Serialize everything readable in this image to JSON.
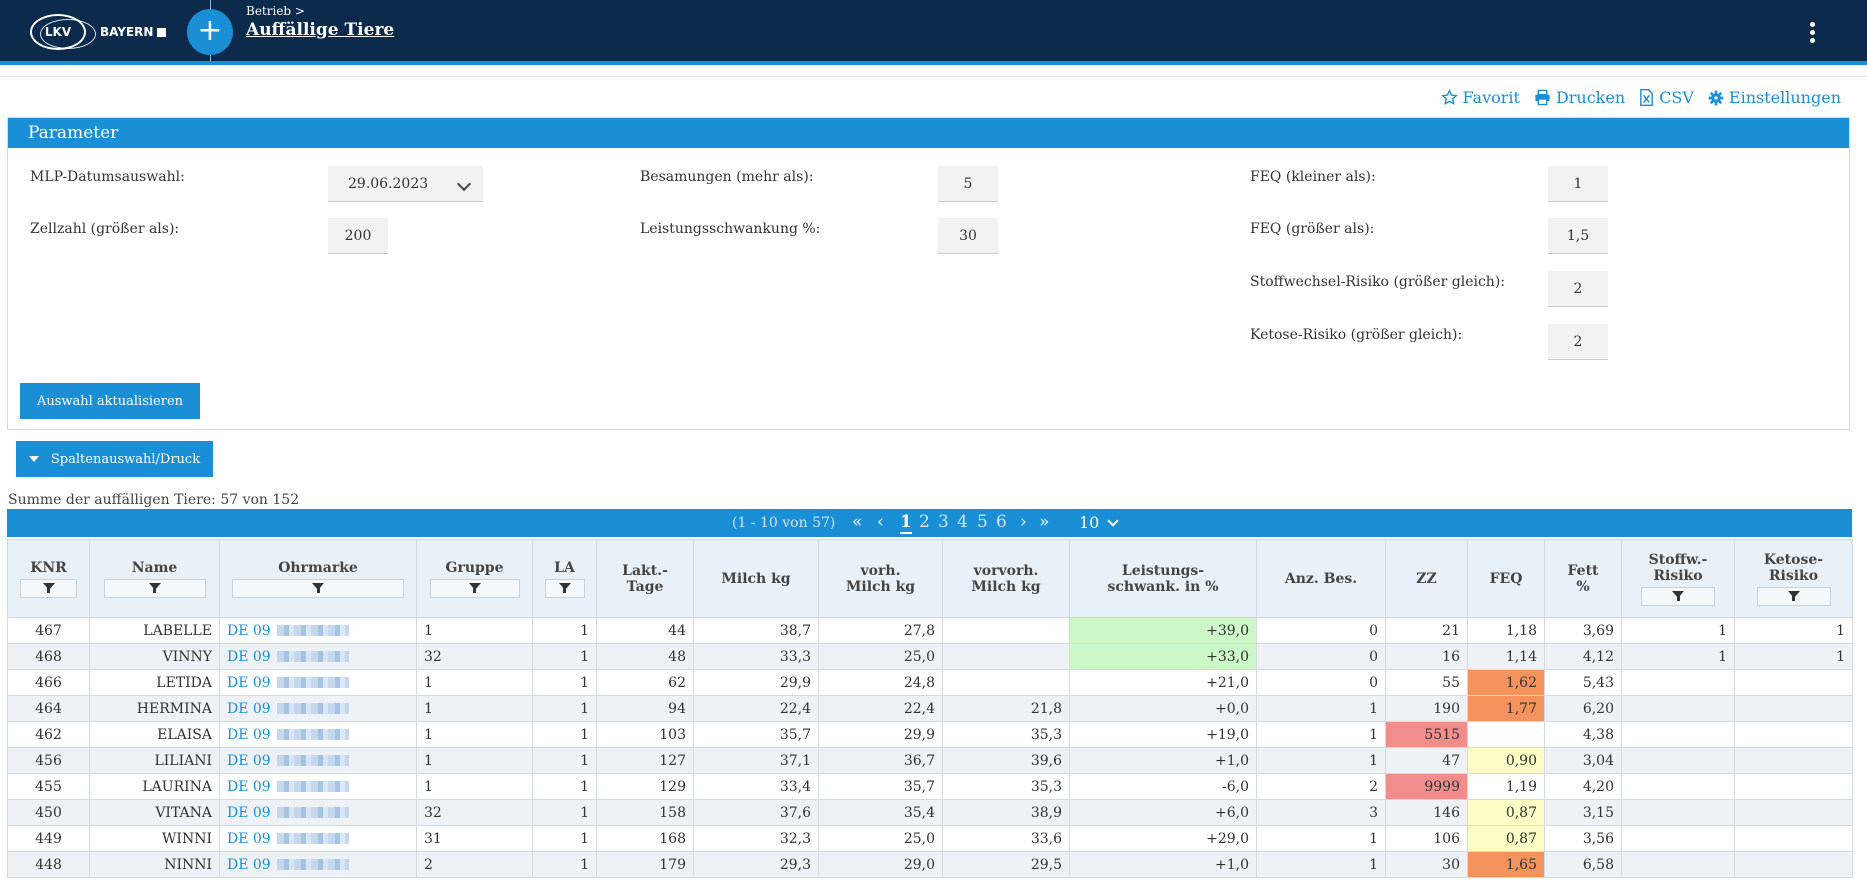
{
  "header": {
    "logo_text": "LKV",
    "logo_region": "BAYERN",
    "breadcrumb": "Betrieb >",
    "title": "Auffällige Tiere",
    "plus_label": "+"
  },
  "actions": {
    "favorite": "Favorit",
    "print": "Drucken",
    "csv": "CSV",
    "settings": "Einstellungen"
  },
  "parameter": {
    "title": "Parameter",
    "mlp_label": "MLP-Datumsauswahl:",
    "mlp_value": "29.06.2023",
    "zellzahl_label": "Zellzahl (größer als):",
    "zellzahl_value": "200",
    "besamungen_label": "Besamungen (mehr als):",
    "besamungen_value": "5",
    "leistung_label": "Leistungsschwankung %:",
    "leistung_value": "30",
    "feq_small_label": "FEQ (kleiner als):",
    "feq_small_value": "1",
    "feq_big_label": "FEQ (größer als):",
    "feq_big_value": "1,5",
    "stoff_label": "Stoffwechsel-Risiko (größer gleich):",
    "stoff_value": "2",
    "ketose_label": "Ketose-Risiko (größer gleich):",
    "ketose_value": "2",
    "update_button": "Auswahl aktualisieren"
  },
  "column_button": "Spaltenauswahl/Druck",
  "summary": "Summe der auffälligen Tiere: 57 von 152",
  "pager": {
    "range": "(1 - 10 von 57)",
    "pages": [
      "1",
      "2",
      "3",
      "4",
      "5",
      "6"
    ],
    "current": "1",
    "page_size": "10"
  },
  "table": {
    "headers": {
      "knr": "KNR",
      "name": "Name",
      "ohrmarke": "Ohrmarke",
      "gruppe": "Gruppe",
      "la": "LA",
      "lakt1": "Lakt.-",
      "lakt2": "Tage",
      "milch": "Milch kg",
      "vorh1": "vorh.",
      "vorh2": "Milch kg",
      "vorvorh1": "vorvorh.",
      "vorvorh2": "Milch kg",
      "leist1": "Leistungs-",
      "leist2": "schwank. in %",
      "anz": "Anz. Bes.",
      "zz": "ZZ",
      "feq": "FEQ",
      "fett1": "Fett",
      "fett2": "%",
      "stoff1": "Stoffw.-",
      "stoff2": "Risiko",
      "ketose1": "Ketose-",
      "ketose2": "Risiko"
    },
    "rows": [
      {
        "knr": "467",
        "name": "LABELLE",
        "ohr": "DE 09",
        "gruppe": "1",
        "la": "1",
        "tage": "44",
        "milch": "38,7",
        "vorh": "27,8",
        "vorvorh": "",
        "leist": "+39,0",
        "leist_hl": "green",
        "anz": "0",
        "zz": "21",
        "zz_hl": "",
        "feq": "1,18",
        "feq_hl": "",
        "fett": "3,69",
        "stoff": "1",
        "ketose": "1"
      },
      {
        "knr": "468",
        "name": "VINNY",
        "ohr": "DE 09",
        "gruppe": "32",
        "la": "1",
        "tage": "48",
        "milch": "33,3",
        "vorh": "25,0",
        "vorvorh": "",
        "leist": "+33,0",
        "leist_hl": "green",
        "anz": "0",
        "zz": "16",
        "zz_hl": "",
        "feq": "1,14",
        "feq_hl": "",
        "fett": "4,12",
        "stoff": "1",
        "ketose": "1"
      },
      {
        "knr": "466",
        "name": "LETIDA",
        "ohr": "DE 09",
        "gruppe": "1",
        "la": "1",
        "tage": "62",
        "milch": "29,9",
        "vorh": "24,8",
        "vorvorh": "",
        "leist": "+21,0",
        "leist_hl": "",
        "anz": "0",
        "zz": "55",
        "zz_hl": "",
        "feq": "1,62",
        "feq_hl": "orange",
        "fett": "5,43",
        "stoff": "",
        "ketose": ""
      },
      {
        "knr": "464",
        "name": "HERMINA",
        "ohr": "DE 09",
        "gruppe": "1",
        "la": "1",
        "tage": "94",
        "milch": "22,4",
        "vorh": "22,4",
        "vorvorh": "21,8",
        "leist": "+0,0",
        "leist_hl": "",
        "anz": "1",
        "zz": "190",
        "zz_hl": "",
        "feq": "1,77",
        "feq_hl": "orange",
        "fett": "6,20",
        "stoff": "",
        "ketose": ""
      },
      {
        "knr": "462",
        "name": "ELAISA",
        "ohr": "DE 09",
        "gruppe": "1",
        "la": "1",
        "tage": "103",
        "milch": "35,7",
        "vorh": "29,9",
        "vorvorh": "35,3",
        "leist": "+19,0",
        "leist_hl": "",
        "anz": "1",
        "zz": "5515",
        "zz_hl": "red",
        "feq": "",
        "feq_hl": "",
        "fett": "4,38",
        "stoff": "",
        "ketose": ""
      },
      {
        "knr": "456",
        "name": "LILIANI",
        "ohr": "DE 09",
        "gruppe": "1",
        "la": "1",
        "tage": "127",
        "milch": "37,1",
        "vorh": "36,7",
        "vorvorh": "39,6",
        "leist": "+1,0",
        "leist_hl": "",
        "anz": "1",
        "zz": "47",
        "zz_hl": "",
        "feq": "0,90",
        "feq_hl": "yellow",
        "fett": "3,04",
        "stoff": "",
        "ketose": ""
      },
      {
        "knr": "455",
        "name": "LAURINA",
        "ohr": "DE 09",
        "gruppe": "1",
        "la": "1",
        "tage": "129",
        "milch": "33,4",
        "vorh": "35,7",
        "vorvorh": "35,3",
        "leist": "-6,0",
        "leist_hl": "",
        "anz": "2",
        "zz": "9999",
        "zz_hl": "red",
        "feq": "1,19",
        "feq_hl": "",
        "fett": "4,20",
        "stoff": "",
        "ketose": ""
      },
      {
        "knr": "450",
        "name": "VITANA",
        "ohr": "DE 09",
        "gruppe": "32",
        "la": "1",
        "tage": "158",
        "milch": "37,6",
        "vorh": "35,4",
        "vorvorh": "38,9",
        "leist": "+6,0",
        "leist_hl": "",
        "anz": "3",
        "zz": "146",
        "zz_hl": "",
        "feq": "0,87",
        "feq_hl": "yellow",
        "fett": "3,15",
        "stoff": "",
        "ketose": ""
      },
      {
        "knr": "449",
        "name": "WINNI",
        "ohr": "DE 09",
        "gruppe": "31",
        "la": "1",
        "tage": "168",
        "milch": "32,3",
        "vorh": "25,0",
        "vorvorh": "33,6",
        "leist": "+29,0",
        "leist_hl": "",
        "anz": "1",
        "zz": "106",
        "zz_hl": "",
        "feq": "0,87",
        "feq_hl": "yellow",
        "fett": "3,56",
        "stoff": "",
        "ketose": ""
      },
      {
        "knr": "448",
        "name": "NINNI",
        "ohr": "DE 09",
        "gruppe": "2",
        "la": "1",
        "tage": "179",
        "milch": "29,3",
        "vorh": "29,0",
        "vorvorh": "29,5",
        "leist": "+1,0",
        "leist_hl": "",
        "anz": "1",
        "zz": "30",
        "zz_hl": "",
        "feq": "1,65",
        "feq_hl": "orange",
        "fett": "6,58",
        "stoff": "",
        "ketose": ""
      }
    ]
  }
}
